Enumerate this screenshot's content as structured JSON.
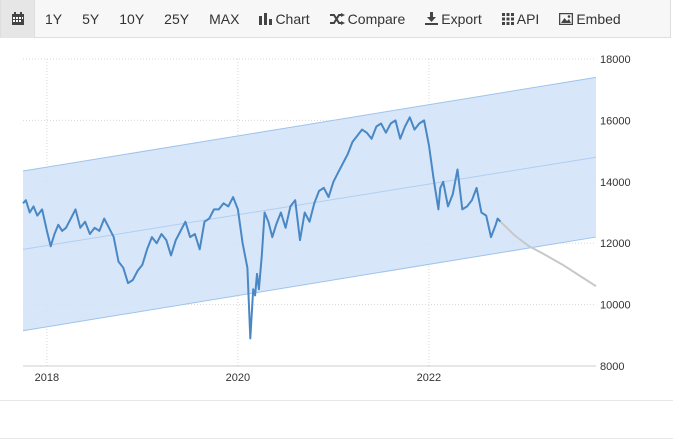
{
  "toolbar": {
    "calendar_icon": "calendar-icon",
    "range_buttons": [
      "1Y",
      "5Y",
      "10Y",
      "25Y",
      "MAX"
    ],
    "chart_label": "Chart",
    "compare_label": "Compare",
    "export_label": "Export",
    "api_label": "API",
    "embed_label": "Embed"
  },
  "chart_data": {
    "type": "line",
    "title": "",
    "xlabel": "",
    "ylabel": "",
    "xlim": [
      2017.75,
      2023.75
    ],
    "ylim": [
      8000,
      18000
    ],
    "x_ticks": [
      2018,
      2020,
      2022
    ],
    "y_ticks": [
      8000,
      10000,
      12000,
      14000,
      16000,
      18000
    ],
    "y_axis_side": "right",
    "grid": true,
    "colors": {
      "line": "#4a87c5",
      "forecast": "#c8c8c8",
      "band_fill": "#d3e4f8",
      "band_edge": "#9fc3ec",
      "grid": "#d8d8d8"
    },
    "band": {
      "x": [
        2017.75,
        2023.75
      ],
      "upper": [
        14350,
        17400
      ],
      "middle": [
        11800,
        14800
      ],
      "lower": [
        9150,
        12200
      ]
    },
    "series": [
      {
        "x": [
          2017.75,
          2017.78,
          2017.82,
          2017.86,
          2017.9,
          2017.95,
          2018.0,
          2018.04,
          2018.08,
          2018.12,
          2018.16,
          2018.2,
          2018.25,
          2018.3,
          2018.35,
          2018.4,
          2018.45,
          2018.5,
          2018.55,
          2018.6,
          2018.65,
          2018.7,
          2018.75,
          2018.8,
          2018.85,
          2018.9,
          2018.95,
          2019.0,
          2019.05,
          2019.1,
          2019.15,
          2019.2,
          2019.25,
          2019.3,
          2019.35,
          2019.4,
          2019.45,
          2019.5,
          2019.55,
          2019.6,
          2019.65,
          2019.7,
          2019.75,
          2019.8,
          2019.85,
          2019.9,
          2019.95,
          2020.0,
          2020.05,
          2020.1,
          2020.13,
          2020.16,
          2020.18,
          2020.2,
          2020.22,
          2020.25,
          2020.28,
          2020.32,
          2020.36,
          2020.4,
          2020.45,
          2020.5,
          2020.55,
          2020.6,
          2020.65,
          2020.7,
          2020.75,
          2020.8,
          2020.85,
          2020.9,
          2020.95,
          2021.0,
          2021.05,
          2021.1,
          2021.15,
          2021.2,
          2021.25,
          2021.3,
          2021.35,
          2021.4,
          2021.45,
          2021.5,
          2021.55,
          2021.6,
          2021.65,
          2021.7,
          2021.75,
          2021.8,
          2021.85,
          2021.9,
          2021.95,
          2022.0,
          2022.05,
          2022.1,
          2022.12,
          2022.15,
          2022.2,
          2022.25,
          2022.3,
          2022.35,
          2022.4,
          2022.45,
          2022.5,
          2022.55,
          2022.6,
          2022.65,
          2022.7,
          2022.72,
          2022.75
        ],
        "values": [
          13300,
          13400,
          13000,
          13200,
          12900,
          13100,
          12400,
          11900,
          12300,
          12600,
          12400,
          12500,
          12800,
          13100,
          12500,
          12700,
          12300,
          12500,
          12400,
          12800,
          12500,
          12200,
          11400,
          11200,
          10700,
          10800,
          11100,
          11300,
          11800,
          12200,
          12000,
          12300,
          12100,
          11600,
          12100,
          12400,
          12700,
          12200,
          12300,
          11800,
          12700,
          12800,
          13100,
          13100,
          13300,
          13200,
          13500,
          13100,
          12000,
          11200,
          8900,
          10500,
          10300,
          11000,
          10500,
          11600,
          13000,
          12700,
          12200,
          12600,
          13000,
          12500,
          13200,
          13400,
          12100,
          13000,
          12700,
          13300,
          13700,
          13800,
          13500,
          14000,
          14300,
          14600,
          14900,
          15300,
          15500,
          15700,
          15600,
          15400,
          15800,
          15900,
          15600,
          15900,
          16000,
          15400,
          15800,
          16100,
          15700,
          15900,
          16000,
          15200,
          14100,
          13100,
          13800,
          14000,
          13200,
          13600,
          14400,
          13100,
          13200,
          13400,
          13800,
          13000,
          12900,
          12200,
          12600,
          12800,
          12700
        ]
      },
      {
        "x": [
          2022.75,
          2022.9,
          2023.05,
          2023.2,
          2023.4,
          2023.6,
          2023.75
        ],
        "values": [
          12700,
          12250,
          11900,
          11650,
          11300,
          10900,
          10600
        ]
      }
    ]
  }
}
